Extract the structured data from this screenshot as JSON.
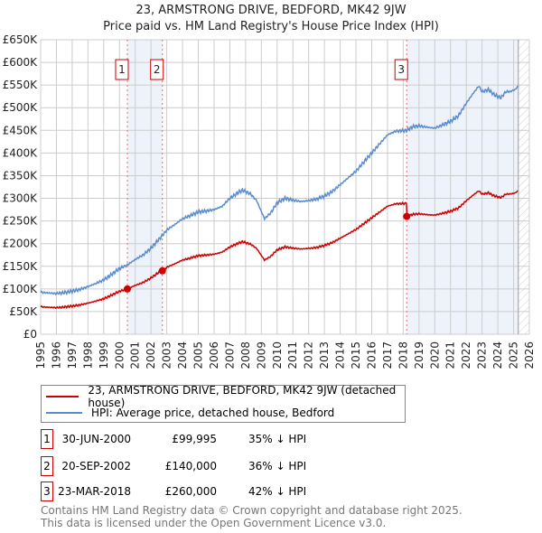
{
  "title": "23, ARMSTRONG DRIVE, BEDFORD, MK42 9JW",
  "subtitle": "Price paid vs. HM Land Registry's House Price Index (HPI)",
  "chart_data": {
    "type": "line",
    "title": "23, ARMSTRONG DRIVE, BEDFORD, MK42 9JW",
    "subtitle": "Price paid vs. HM Land Registry's House Price Index (HPI)",
    "xlim": [
      1995,
      2026
    ],
    "ylim": [
      0,
      650000
    ],
    "yticks": [
      0,
      50000,
      100000,
      150000,
      200000,
      250000,
      300000,
      350000,
      400000,
      450000,
      500000,
      550000,
      600000,
      650000
    ],
    "ytick_labels": [
      "£0",
      "£50K",
      "£100K",
      "£150K",
      "£200K",
      "£250K",
      "£300K",
      "£350K",
      "£400K",
      "£450K",
      "£500K",
      "£550K",
      "£600K",
      "£650K"
    ],
    "xticks": [
      1995,
      1996,
      1997,
      1998,
      1999,
      2000,
      2001,
      2002,
      2003,
      2004,
      2005,
      2006,
      2007,
      2008,
      2009,
      2010,
      2011,
      2012,
      2013,
      2014,
      2015,
      2016,
      2017,
      2018,
      2019,
      2020,
      2021,
      2022,
      2023,
      2024,
      2025,
      2026
    ],
    "grid": true,
    "legend_placement": "below",
    "forecast_hatch_from": 2025.3,
    "series": [
      {
        "name": "23, ARMSTRONG DRIVE, BEDFORD, MK42 9JW (detached house)",
        "color": "#cc0000",
        "derived_from_hpi": true
      },
      {
        "name": "HPI: Average price, detached house, Bedford",
        "color": "#5b8bd0",
        "x": [
          1995,
          1995.5,
          1996,
          1996.5,
          1997,
          1997.5,
          1998,
          1998.5,
          1999,
          1999.5,
          2000,
          2000.5,
          2001,
          2001.5,
          2002,
          2002.72,
          2003,
          2003.5,
          2004,
          2004.5,
          2005,
          2005.5,
          2006,
          2006.5,
          2007,
          2007.5,
          2007.8,
          2008.3,
          2008.7,
          2009.2,
          2009.6,
          2010,
          2010.5,
          2011,
          2011.5,
          2012,
          2012.5,
          2013,
          2013.5,
          2014,
          2014.5,
          2015,
          2015.5,
          2016,
          2016.5,
          2017,
          2017.5,
          2018.22,
          2018.6,
          2019,
          2019.5,
          2020,
          2020.5,
          2021,
          2021.5,
          2022,
          2022.4,
          2022.8,
          2023,
          2023.4,
          2023.8,
          2024.2,
          2024.5,
          2024.8,
          2025.1,
          2025.3
        ],
        "y": [
          93000,
          91000,
          90000,
          92000,
          95000,
          99000,
          105000,
          112000,
          120000,
          132000,
          145000,
          153000,
          165000,
          175000,
          190000,
          218000,
          230000,
          242000,
          255000,
          262000,
          270000,
          272000,
          275000,
          282000,
          300000,
          312000,
          318000,
          310000,
          295000,
          255000,
          268000,
          290000,
          300000,
          296000,
          293000,
          295000,
          298000,
          305000,
          315000,
          330000,
          345000,
          360000,
          380000,
          400000,
          420000,
          440000,
          448000,
          450000,
          458000,
          460000,
          457000,
          455000,
          462000,
          470000,
          482000,
          510000,
          530000,
          548000,
          535000,
          540000,
          528000,
          522000,
          535000,
          536000,
          540000,
          548000
        ]
      }
    ],
    "sales": [
      {
        "label": "1",
        "x": 2000.5,
        "price": 99995
      },
      {
        "label": "2",
        "x": 2002.72,
        "price": 140000
      },
      {
        "label": "3",
        "x": 2018.22,
        "price": 260000
      }
    ]
  },
  "legend": [
    {
      "label": "23, ARMSTRONG DRIVE, BEDFORD, MK42 9JW (detached house)",
      "color": "#cc0000"
    },
    {
      "label": "HPI: Average price, detached house, Bedford",
      "color": "#5b8bd0"
    }
  ],
  "transactions": [
    {
      "num": "1",
      "date": "30-JUN-2000",
      "price": "£99,995",
      "hpi": "35% ↓ HPI"
    },
    {
      "num": "2",
      "date": "20-SEP-2002",
      "price": "£140,000",
      "hpi": "36% ↓ HPI"
    },
    {
      "num": "3",
      "date": "23-MAR-2018",
      "price": "£260,000",
      "hpi": "42% ↓ HPI"
    }
  ],
  "footer": [
    "Contains HM Land Registry data © Crown copyright and database right 2025.",
    "This data is licensed under the Open Government Licence v3.0."
  ]
}
